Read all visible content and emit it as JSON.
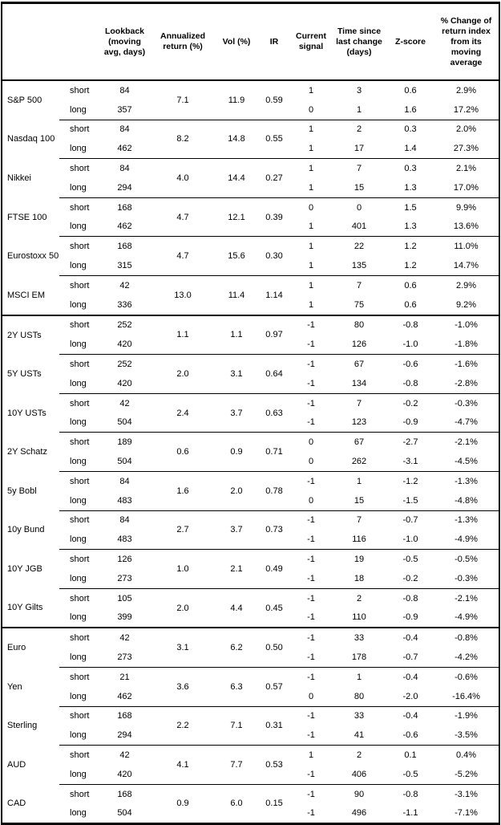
{
  "page": {
    "background": "#ffffff",
    "text_color": "#000000",
    "border_color": "#000000"
  },
  "table": {
    "headers": {
      "instrument": "",
      "leg": "",
      "lookback": "Lookback\n(moving\navg, days)",
      "annualized_return": "Annualized\nreturn (%)",
      "vol": "Vol (%)",
      "ir": "IR",
      "current_signal": "Current\nsignal",
      "time_since_change": "Time since\nlast change\n(days)",
      "z_score": "Z-score",
      "pct_change": "% Change of\nreturn index\nfrom its\nmoving\naverage"
    },
    "instruments": [
      {
        "name": "S&P 500",
        "section_start": false,
        "annualized_return": "7.1",
        "vol": "11.9",
        "ir": "0.59",
        "rows": [
          {
            "leg": "short",
            "lookback": "84",
            "signal": "1",
            "time": "3",
            "z_score": "0.6",
            "pct_change": "2.9%"
          },
          {
            "leg": "long",
            "lookback": "357",
            "signal": "0",
            "time": "1",
            "z_score": "1.6",
            "pct_change": "17.2%"
          }
        ]
      },
      {
        "name": "Nasdaq 100",
        "section_start": false,
        "annualized_return": "8.2",
        "vol": "14.8",
        "ir": "0.55",
        "rows": [
          {
            "leg": "short",
            "lookback": "84",
            "signal": "1",
            "time": "2",
            "z_score": "0.3",
            "pct_change": "2.0%"
          },
          {
            "leg": "long",
            "lookback": "462",
            "signal": "1",
            "time": "17",
            "z_score": "1.4",
            "pct_change": "27.3%"
          }
        ]
      },
      {
        "name": "Nikkei",
        "section_start": false,
        "annualized_return": "4.0",
        "vol": "14.4",
        "ir": "0.27",
        "rows": [
          {
            "leg": "short",
            "lookback": "84",
            "signal": "1",
            "time": "7",
            "z_score": "0.3",
            "pct_change": "2.1%"
          },
          {
            "leg": "long",
            "lookback": "294",
            "signal": "1",
            "time": "15",
            "z_score": "1.3",
            "pct_change": "17.0%"
          }
        ]
      },
      {
        "name": "FTSE 100",
        "section_start": false,
        "annualized_return": "4.7",
        "vol": "12.1",
        "ir": "0.39",
        "rows": [
          {
            "leg": "short",
            "lookback": "168",
            "signal": "0",
            "time": "0",
            "z_score": "1.5",
            "pct_change": "9.9%"
          },
          {
            "leg": "long",
            "lookback": "462",
            "signal": "1",
            "time": "401",
            "z_score": "1.3",
            "pct_change": "13.6%"
          }
        ]
      },
      {
        "name": "Eurostoxx 50",
        "section_start": false,
        "annualized_return": "4.7",
        "vol": "15.6",
        "ir": "0.30",
        "rows": [
          {
            "leg": "short",
            "lookback": "168",
            "signal": "1",
            "time": "22",
            "z_score": "1.2",
            "pct_change": "11.0%"
          },
          {
            "leg": "long",
            "lookback": "315",
            "signal": "1",
            "time": "135",
            "z_score": "1.2",
            "pct_change": "14.7%"
          }
        ]
      },
      {
        "name": "MSCI EM",
        "section_start": false,
        "annualized_return": "13.0",
        "vol": "11.4",
        "ir": "1.14",
        "rows": [
          {
            "leg": "short",
            "lookback": "42",
            "signal": "1",
            "time": "7",
            "z_score": "0.6",
            "pct_change": "2.9%"
          },
          {
            "leg": "long",
            "lookback": "336",
            "signal": "1",
            "time": "75",
            "z_score": "0.6",
            "pct_change": "9.2%"
          }
        ]
      },
      {
        "name": "2Y USTs",
        "section_start": true,
        "annualized_return": "1.1",
        "vol": "1.1",
        "ir": "0.97",
        "rows": [
          {
            "leg": "short",
            "lookback": "252",
            "signal": "-1",
            "time": "80",
            "z_score": "-0.8",
            "pct_change": "-1.0%"
          },
          {
            "leg": "long",
            "lookback": "420",
            "signal": "-1",
            "time": "126",
            "z_score": "-1.0",
            "pct_change": "-1.8%"
          }
        ]
      },
      {
        "name": "5Y USTs",
        "section_start": false,
        "annualized_return": "2.0",
        "vol": "3.1",
        "ir": "0.64",
        "rows": [
          {
            "leg": "short",
            "lookback": "252",
            "signal": "-1",
            "time": "67",
            "z_score": "-0.6",
            "pct_change": "-1.6%"
          },
          {
            "leg": "long",
            "lookback": "420",
            "signal": "-1",
            "time": "134",
            "z_score": "-0.8",
            "pct_change": "-2.8%"
          }
        ]
      },
      {
        "name": "10Y USTs",
        "section_start": false,
        "annualized_return": "2.4",
        "vol": "3.7",
        "ir": "0.63",
        "rows": [
          {
            "leg": "short",
            "lookback": "42",
            "signal": "-1",
            "time": "7",
            "z_score": "-0.2",
            "pct_change": "-0.3%"
          },
          {
            "leg": "long",
            "lookback": "504",
            "signal": "-1",
            "time": "123",
            "z_score": "-0.9",
            "pct_change": "-4.7%"
          }
        ]
      },
      {
        "name": "2Y Schatz",
        "section_start": false,
        "annualized_return": "0.6",
        "vol": "0.9",
        "ir": "0.71",
        "rows": [
          {
            "leg": "short",
            "lookback": "189",
            "signal": "0",
            "time": "67",
            "z_score": "-2.7",
            "pct_change": "-2.1%"
          },
          {
            "leg": "long",
            "lookback": "504",
            "signal": "0",
            "time": "262",
            "z_score": "-3.1",
            "pct_change": "-4.5%"
          }
        ]
      },
      {
        "name": "5y Bobl",
        "section_start": false,
        "annualized_return": "1.6",
        "vol": "2.0",
        "ir": "0.78",
        "rows": [
          {
            "leg": "short",
            "lookback": "84",
            "signal": "-1",
            "time": "1",
            "z_score": "-1.2",
            "pct_change": "-1.3%"
          },
          {
            "leg": "long",
            "lookback": "483",
            "signal": "0",
            "time": "15",
            "z_score": "-1.5",
            "pct_change": "-4.8%"
          }
        ]
      },
      {
        "name": "10y Bund",
        "section_start": false,
        "annualized_return": "2.7",
        "vol": "3.7",
        "ir": "0.73",
        "rows": [
          {
            "leg": "short",
            "lookback": "84",
            "signal": "-1",
            "time": "7",
            "z_score": "-0.7",
            "pct_change": "-1.3%"
          },
          {
            "leg": "long",
            "lookback": "483",
            "signal": "-1",
            "time": "116",
            "z_score": "-1.0",
            "pct_change": "-4.9%"
          }
        ]
      },
      {
        "name": "10Y JGB",
        "section_start": false,
        "annualized_return": "1.0",
        "vol": "2.1",
        "ir": "0.49",
        "rows": [
          {
            "leg": "short",
            "lookback": "126",
            "signal": "-1",
            "time": "19",
            "z_score": "-0.5",
            "pct_change": "-0.5%"
          },
          {
            "leg": "long",
            "lookback": "273",
            "signal": "-1",
            "time": "18",
            "z_score": "-0.2",
            "pct_change": "-0.3%"
          }
        ]
      },
      {
        "name": "10Y Gilts",
        "section_start": false,
        "annualized_return": "2.0",
        "vol": "4.4",
        "ir": "0.45",
        "rows": [
          {
            "leg": "short",
            "lookback": "105",
            "signal": "-1",
            "time": "2",
            "z_score": "-0.8",
            "pct_change": "-2.1%"
          },
          {
            "leg": "long",
            "lookback": "399",
            "signal": "-1",
            "time": "110",
            "z_score": "-0.9",
            "pct_change": "-4.9%"
          }
        ]
      },
      {
        "name": "Euro",
        "section_start": true,
        "annualized_return": "3.1",
        "vol": "6.2",
        "ir": "0.50",
        "rows": [
          {
            "leg": "short",
            "lookback": "42",
            "signal": "-1",
            "time": "33",
            "z_score": "-0.4",
            "pct_change": "-0.8%"
          },
          {
            "leg": "long",
            "lookback": "273",
            "signal": "-1",
            "time": "178",
            "z_score": "-0.7",
            "pct_change": "-4.2%"
          }
        ]
      },
      {
        "name": "Yen",
        "section_start": false,
        "annualized_return": "3.6",
        "vol": "6.3",
        "ir": "0.57",
        "rows": [
          {
            "leg": "short",
            "lookback": "21",
            "signal": "-1",
            "time": "1",
            "z_score": "-0.4",
            "pct_change": "-0.6%"
          },
          {
            "leg": "long",
            "lookback": "462",
            "signal": "0",
            "time": "80",
            "z_score": "-2.0",
            "pct_change": "-16.4%"
          }
        ]
      },
      {
        "name": "Sterling",
        "section_start": false,
        "annualized_return": "2.2",
        "vol": "7.1",
        "ir": "0.31",
        "rows": [
          {
            "leg": "short",
            "lookback": "168",
            "signal": "-1",
            "time": "33",
            "z_score": "-0.4",
            "pct_change": "-1.9%"
          },
          {
            "leg": "long",
            "lookback": "294",
            "signal": "-1",
            "time": "41",
            "z_score": "-0.6",
            "pct_change": "-3.5%"
          }
        ]
      },
      {
        "name": "AUD",
        "section_start": false,
        "annualized_return": "4.1",
        "vol": "7.7",
        "ir": "0.53",
        "rows": [
          {
            "leg": "short",
            "lookback": "42",
            "signal": "1",
            "time": "2",
            "z_score": "0.1",
            "pct_change": "0.4%"
          },
          {
            "leg": "long",
            "lookback": "420",
            "signal": "-1",
            "time": "406",
            "z_score": "-0.5",
            "pct_change": "-5.2%"
          }
        ]
      },
      {
        "name": "CAD",
        "section_start": false,
        "annualized_return": "0.9",
        "vol": "6.0",
        "ir": "0.15",
        "rows": [
          {
            "leg": "short",
            "lookback": "168",
            "signal": "-1",
            "time": "90",
            "z_score": "-0.8",
            "pct_change": "-3.1%"
          },
          {
            "leg": "long",
            "lookback": "504",
            "signal": "-1",
            "time": "496",
            "z_score": "-1.1",
            "pct_change": "-7.1%"
          }
        ]
      }
    ]
  }
}
